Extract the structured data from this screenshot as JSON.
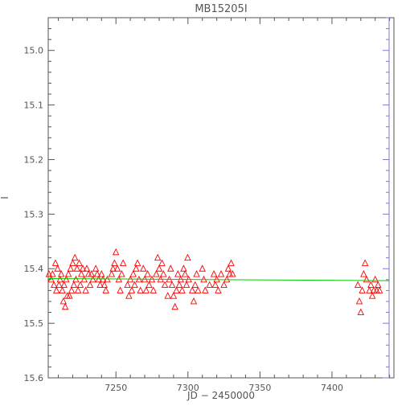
{
  "chart_data": {
    "type": "scatter",
    "title": "MB15205I",
    "xlabel": "JD − 2450000",
    "ylabel": "I",
    "xlim": [
      7203,
      7443
    ],
    "ylim": [
      15.6,
      14.94
    ],
    "y_inverted": true,
    "x_ticks": [
      7250,
      7300,
      7350,
      7400
    ],
    "y_ticks": [
      15.0,
      15.1,
      15.2,
      15.3,
      15.4,
      15.5,
      15.6
    ],
    "y_tick_labels": [
      "15.0",
      "15.1",
      "15.2",
      "15.3",
      "15.4",
      "15.5",
      "15.6"
    ],
    "grid": false,
    "legend": "none",
    "marker_color": "#ff0000",
    "fit_color": "#00cc00",
    "right_axis_color": "#7b7bd0",
    "series": [
      {
        "marker": "triangle",
        "x": [
          7203.5,
          7205.0,
          7206.0,
          7207.0,
          7208.0,
          7208.7,
          7209.5,
          7210.5,
          7211.2,
          7212.0,
          7212.8,
          7213.5,
          7214.0,
          7214.8,
          7215.5,
          7216.2,
          7217.0,
          7217.7,
          7218.5,
          7219.2,
          7220.0,
          7220.8,
          7221.5,
          7222.2,
          7223.0,
          7223.7,
          7224.5,
          7225.3,
          7226.0,
          7227.0,
          7228.0,
          7229.0,
          7229.8,
          7231.0,
          7232.0,
          7233.0,
          7234.0,
          7236.0,
          7237.0,
          7238.0,
          7239.0,
          7240.0,
          7241.0,
          7242.0,
          7243.0,
          7244.0,
          7247.0,
          7248.0,
          7249.0,
          7250.0,
          7251.0,
          7252.0,
          7253.0,
          7254.0,
          7255.0,
          7258.0,
          7259.0,
          7260.0,
          7261.0,
          7262.0,
          7263.0,
          7264.0,
          7265.0,
          7266.0,
          7267.0,
          7269.0,
          7270.0,
          7271.0,
          7272.0,
          7273.0,
          7275.0,
          7276.0,
          7278.0,
          7279.0,
          7280.0,
          7281.0,
          7282.0,
          7283.0,
          7284.0,
          7286.0,
          7287.0,
          7288.0,
          7289.0,
          7290.0,
          7291.0,
          7292.0,
          7293.0,
          7294.0,
          7295.0,
          7296.0,
          7297.0,
          7298.0,
          7299.0,
          7299.8,
          7300.5,
          7303.0,
          7304.0,
          7305.0,
          7306.0,
          7307.0,
          7310.0,
          7311.0,
          7312.0,
          7315.0,
          7318.0,
          7319.0,
          7320.0,
          7321.0,
          7323.0,
          7325.0,
          7327.0,
          7328.0,
          7329.0,
          7330.0,
          7331.0,
          7418.0,
          7419.0,
          7420.0,
          7421.0,
          7422.0,
          7423.0,
          7424.0,
          7426.0,
          7427.0,
          7428.0,
          7429.0,
          7430.0,
          7431.0,
          7432.0,
          7433.0
        ],
        "y": [
          15.41,
          15.42,
          15.41,
          15.43,
          15.39,
          15.44,
          15.4,
          15.43,
          15.42,
          15.41,
          15.44,
          15.46,
          15.43,
          15.47,
          15.42,
          15.45,
          15.41,
          15.45,
          15.4,
          15.44,
          15.39,
          15.43,
          15.38,
          15.42,
          15.4,
          15.44,
          15.39,
          15.43,
          15.41,
          15.4,
          15.42,
          15.44,
          15.4,
          15.41,
          15.43,
          15.41,
          15.42,
          15.4,
          15.41,
          15.42,
          15.43,
          15.41,
          15.42,
          15.43,
          15.44,
          15.42,
          15.41,
          15.4,
          15.39,
          15.37,
          15.4,
          15.42,
          15.44,
          15.41,
          15.39,
          15.43,
          15.45,
          15.42,
          15.44,
          15.41,
          15.43,
          15.4,
          15.39,
          15.42,
          15.44,
          15.4,
          15.42,
          15.44,
          15.41,
          15.43,
          15.42,
          15.44,
          15.41,
          15.38,
          15.4,
          15.42,
          15.39,
          15.41,
          15.43,
          15.45,
          15.42,
          15.4,
          15.43,
          15.45,
          15.47,
          15.44,
          15.41,
          15.43,
          15.42,
          15.44,
          15.4,
          15.41,
          15.43,
          15.38,
          15.42,
          15.44,
          15.46,
          15.43,
          15.41,
          15.44,
          15.4,
          15.42,
          15.44,
          15.43,
          15.41,
          15.43,
          15.42,
          15.44,
          15.41,
          15.43,
          15.42,
          15.4,
          15.41,
          15.39,
          15.41,
          15.43,
          15.46,
          15.48,
          15.44,
          15.41,
          15.39,
          15.42,
          15.44,
          15.43,
          15.45,
          15.44,
          15.42,
          15.44,
          15.43,
          15.44
        ]
      }
    ],
    "trend": {
      "type": "line",
      "x": [
        7203,
        7440
      ],
      "y": [
        15.418,
        15.422
      ]
    }
  }
}
